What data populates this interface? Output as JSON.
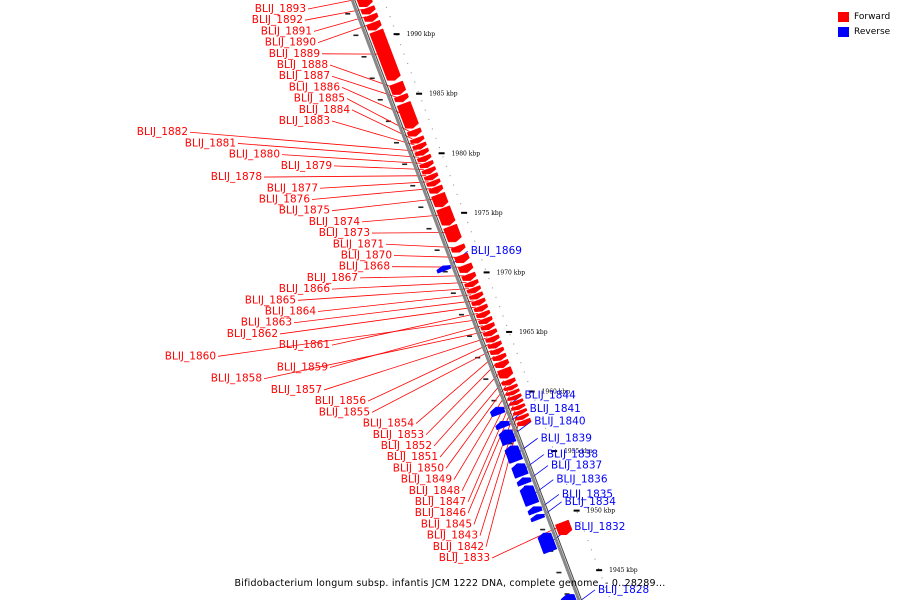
{
  "legend": {
    "forward_label": "Forward",
    "reverse_label": "Reverse",
    "forward_color": "#ff0000",
    "reverse_color": "#0000ff"
  },
  "caption": "Bifidobacterium longum subsp. infantis JCM 1222 DNA, complete genome. - 0..28289...",
  "ticks": [
    "1990 kbp",
    "1985 kbp",
    "1980 kbp",
    "1975 kbp",
    "1970 kbp",
    "1965 kbp",
    "1960 kbp",
    "1955 kbp",
    "1950 kbp",
    "1945 kbp"
  ],
  "genes": [
    {
      "id": "BLIJ_1893",
      "strand": "forward",
      "pos": 0.0,
      "len": 0.02
    },
    {
      "id": "BLIJ_1892",
      "strand": "forward",
      "pos": 0.022,
      "len": 0.01
    },
    {
      "id": "BLIJ_1891",
      "strand": "forward",
      "pos": 0.034,
      "len": 0.01
    },
    {
      "id": "BLIJ_1890",
      "strand": "forward",
      "pos": 0.046,
      "len": 0.012
    },
    {
      "id": "BLIJ_1889",
      "strand": "forward",
      "pos": 0.06,
      "len": 0.08
    },
    {
      "id": "BLIJ_1888",
      "strand": "forward",
      "pos": 0.145,
      "len": 0.018
    },
    {
      "id": "BLIJ_1887",
      "strand": "forward",
      "pos": 0.165,
      "len": 0.01
    },
    {
      "id": "BLIJ_1886",
      "strand": "forward",
      "pos": 0.178,
      "len": 0.04
    },
    {
      "id": "BLIJ_1885",
      "strand": "forward",
      "pos": 0.221,
      "len": 0.01
    },
    {
      "id": "BLIJ_1884",
      "strand": "forward",
      "pos": 0.234,
      "len": 0.008
    },
    {
      "id": "BLIJ_1883",
      "strand": "forward",
      "pos": 0.244,
      "len": 0.008
    },
    {
      "id": "BLIJ_1882",
      "strand": "forward",
      "pos": 0.254,
      "len": 0.008
    },
    {
      "id": "BLIJ_1881",
      "strand": "forward",
      "pos": 0.264,
      "len": 0.008
    },
    {
      "id": "BLIJ_1880",
      "strand": "forward",
      "pos": 0.274,
      "len": 0.008
    },
    {
      "id": "BLIJ_1879",
      "strand": "forward",
      "pos": 0.284,
      "len": 0.008
    },
    {
      "id": "BLIJ_1878",
      "strand": "forward",
      "pos": 0.294,
      "len": 0.008
    },
    {
      "id": "BLIJ_1877",
      "strand": "forward",
      "pos": 0.304,
      "len": 0.008
    },
    {
      "id": "BLIJ_1876",
      "strand": "forward",
      "pos": 0.314,
      "len": 0.01
    },
    {
      "id": "BLIJ_1875",
      "strand": "forward",
      "pos": 0.326,
      "len": 0.02
    },
    {
      "id": "BLIJ_1874",
      "strand": "forward",
      "pos": 0.348,
      "len": 0.028
    },
    {
      "id": "BLIJ_1873",
      "strand": "forward",
      "pos": 0.378,
      "len": 0.025
    },
    {
      "id": "BLIJ_1871",
      "strand": "forward",
      "pos": 0.41,
      "len": 0.01
    },
    {
      "id": "BLIJ_1870",
      "strand": "forward",
      "pos": 0.425,
      "len": 0.012
    },
    {
      "id": "BLIJ_1868",
      "strand": "forward",
      "pos": 0.441,
      "len": 0.012
    },
    {
      "id": "BLIJ_1867",
      "strand": "forward",
      "pos": 0.456,
      "len": 0.01
    },
    {
      "id": "BLIJ_1866",
      "strand": "forward",
      "pos": 0.468,
      "len": 0.008
    },
    {
      "id": "BLIJ_1865",
      "strand": "forward",
      "pos": 0.478,
      "len": 0.008
    },
    {
      "id": "BLIJ_1864",
      "strand": "forward",
      "pos": 0.488,
      "len": 0.008
    },
    {
      "id": "BLIJ_1863",
      "strand": "forward",
      "pos": 0.498,
      "len": 0.008
    },
    {
      "id": "BLIJ_1862",
      "strand": "forward",
      "pos": 0.508,
      "len": 0.008
    },
    {
      "id": "BLIJ_1861",
      "strand": "forward",
      "pos": 0.518,
      "len": 0.008
    },
    {
      "id": "BLIJ_1860",
      "strand": "forward",
      "pos": 0.528,
      "len": 0.008
    },
    {
      "id": "BLIJ_1859",
      "strand": "forward",
      "pos": 0.538,
      "len": 0.008
    },
    {
      "id": "BLIJ_1858",
      "strand": "forward",
      "pos": 0.548,
      "len": 0.008
    },
    {
      "id": "BLIJ_1857",
      "strand": "forward",
      "pos": 0.558,
      "len": 0.008
    },
    {
      "id": "BLIJ_1856",
      "strand": "forward",
      "pos": 0.568,
      "len": 0.008
    },
    {
      "id": "BLIJ_1855",
      "strand": "forward",
      "pos": 0.578,
      "len": 0.008
    },
    {
      "id": "BLIJ_1854",
      "strand": "forward",
      "pos": 0.588,
      "len": 0.008
    },
    {
      "id": "BLIJ_1853",
      "strand": "forward",
      "pos": 0.598,
      "len": 0.01
    },
    {
      "id": "BLIJ_1852",
      "strand": "forward",
      "pos": 0.61,
      "len": 0.015
    },
    {
      "id": "BLIJ_1851",
      "strand": "forward",
      "pos": 0.628,
      "len": 0.008
    },
    {
      "id": "BLIJ_1850",
      "strand": "forward",
      "pos": 0.638,
      "len": 0.006
    },
    {
      "id": "BLIJ_1849",
      "strand": "forward",
      "pos": 0.646,
      "len": 0.006
    },
    {
      "id": "BLIJ_1848",
      "strand": "forward",
      "pos": 0.654,
      "len": 0.006
    },
    {
      "id": "BLIJ_1847",
      "strand": "forward",
      "pos": 0.662,
      "len": 0.006
    },
    {
      "id": "BLIJ_1846",
      "strand": "forward",
      "pos": 0.67,
      "len": 0.006
    },
    {
      "id": "BLIJ_1845",
      "strand": "forward",
      "pos": 0.678,
      "len": 0.006
    },
    {
      "id": "BLIJ_1843",
      "strand": "forward",
      "pos": 0.686,
      "len": 0.006
    },
    {
      "id": "BLIJ_1842",
      "strand": "forward",
      "pos": 0.694,
      "len": 0.008
    },
    {
      "id": "BLIJ_1833",
      "strand": "forward",
      "pos": 0.86,
      "len": 0.02
    },
    {
      "id": "BLIJ_1869",
      "strand": "reverse",
      "pos": 0.43,
      "len": 0.008
    },
    {
      "id": "BLIJ_1844",
      "strand": "reverse",
      "pos": 0.66,
      "len": 0.012
    },
    {
      "id": "BLIJ_1841",
      "strand": "reverse",
      "pos": 0.683,
      "len": 0.01
    },
    {
      "id": "BLIJ_1840",
      "strand": "reverse",
      "pos": 0.697,
      "len": 0.022
    },
    {
      "id": "BLIJ_1839",
      "strand": "reverse",
      "pos": 0.723,
      "len": 0.025
    },
    {
      "id": "BLIJ_1838",
      "strand": "reverse",
      "pos": 0.752,
      "len": 0.02
    },
    {
      "id": "BLIJ_1837",
      "strand": "reverse",
      "pos": 0.775,
      "len": 0.01
    },
    {
      "id": "BLIJ_1836",
      "strand": "reverse",
      "pos": 0.788,
      "len": 0.03
    },
    {
      "id": "BLIJ_1835",
      "strand": "reverse",
      "pos": 0.822,
      "len": 0.01
    },
    {
      "id": "BLIJ_1834",
      "strand": "reverse",
      "pos": 0.835,
      "len": 0.008
    },
    {
      "id": "BLIJ_1832",
      "strand": "reverse",
      "pos": 0.865,
      "len": 0.03
    },
    {
      "id": "BLIJ_1828",
      "strand": "reverse",
      "pos": 0.965,
      "len": 0.035
    }
  ]
}
